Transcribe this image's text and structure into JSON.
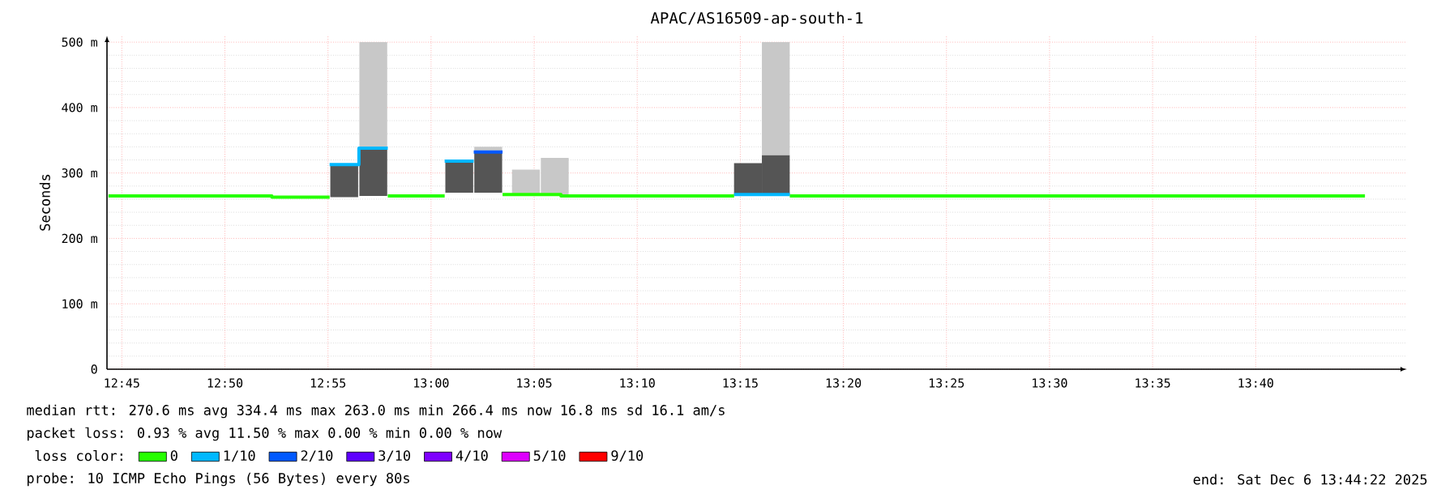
{
  "chart_data": {
    "type": "step",
    "title": "APAC/AS16509-ap-south-1",
    "ylabel": "Seconds",
    "legend_title": "loss color:",
    "xlim": [
      12.738,
      13.789
    ],
    "ylim": [
      0,
      510
    ],
    "xticks": [
      {
        "value": 12.75,
        "label": "12:45"
      },
      {
        "value": 12.833333,
        "label": "12:50"
      },
      {
        "value": 12.916667,
        "label": "12:55"
      },
      {
        "value": 13.0,
        "label": "13:00"
      },
      {
        "value": 13.083333,
        "label": "13:05"
      },
      {
        "value": 13.166667,
        "label": "13:10"
      },
      {
        "value": 13.25,
        "label": "13:15"
      },
      {
        "value": 13.333333,
        "label": "13:20"
      },
      {
        "value": 13.416667,
        "label": "13:25"
      },
      {
        "value": 13.5,
        "label": "13:30"
      },
      {
        "value": 13.583333,
        "label": "13:35"
      },
      {
        "value": 13.666667,
        "label": "13:40"
      }
    ],
    "yticks": [
      0,
      {
        "value": 100,
        "label": "100 m"
      },
      {
        "value": 200,
        "label": "200 m"
      },
      {
        "value": 300,
        "label": "300 m"
      },
      {
        "value": 400,
        "label": "400 m"
      },
      {
        "value": 500,
        "label": "500 m"
      }
    ],
    "grid": true,
    "legend": "bottom",
    "series": [
      {
        "type": "bar",
        "color": "#c8c8c8",
        "x": [
          12.9533,
          13.0462,
          13.0767,
          13.1,
          13.2787
        ],
        "base": [
          338,
          332,
          265,
          265,
          327
        ],
        "values": [
          162,
          8,
          40,
          58,
          173
        ]
      },
      {
        "type": "bar",
        "color": "#555555",
        "x": [
          12.9298,
          12.9533,
          13.0228,
          13.0462,
          13.2562,
          13.2787
        ],
        "base": [
          263,
          265,
          270,
          270,
          265,
          265
        ],
        "values": [
          50,
          73,
          48,
          62,
          50,
          62
        ]
      },
      {
        "name": "0",
        "color": "#26ff00",
        "x": [
          12.7392,
          12.8713,
          12.918,
          12.965,
          13.011,
          13.0578,
          13.105,
          13.245,
          13.29,
          13.755
        ],
        "values": [
          265,
          263,
          null,
          265,
          null,
          267,
          265,
          null,
          265,
          265
        ]
      },
      {
        "name": "1/10",
        "color": "#00b8ff",
        "x": [
          12.918,
          12.9417,
          12.965,
          13.011,
          13.0345,
          13.245,
          13.29
        ],
        "values": [
          313,
          338,
          null,
          318,
          null,
          267,
          267
        ]
      },
      {
        "name": "2/10",
        "color": "#0059ff",
        "x": [
          13.0345,
          13.0578
        ],
        "values": [
          332,
          332
        ]
      },
      {
        "name": "3/10",
        "color": "#5e00ff"
      },
      {
        "name": "4/10",
        "color": "#7e00ff"
      },
      {
        "name": "5/10",
        "color": "#dd00ff"
      },
      {
        "name": "9/10",
        "color": "#ff0000"
      }
    ],
    "annotations": [
      "median rtt: 270.6 ms avg 334.4 ms max 263.0 ms min 266.4 ms now 16.8 ms sd 16.1 am/s",
      "packet loss: 0.93 % avg 11.50 % max 0.00 % min 0.00 % now",
      "probe: 10 ICMP Echo Pings (56 Bytes) every 80s",
      "end: Sat Dec 6 13:44:22 2025"
    ]
  }
}
